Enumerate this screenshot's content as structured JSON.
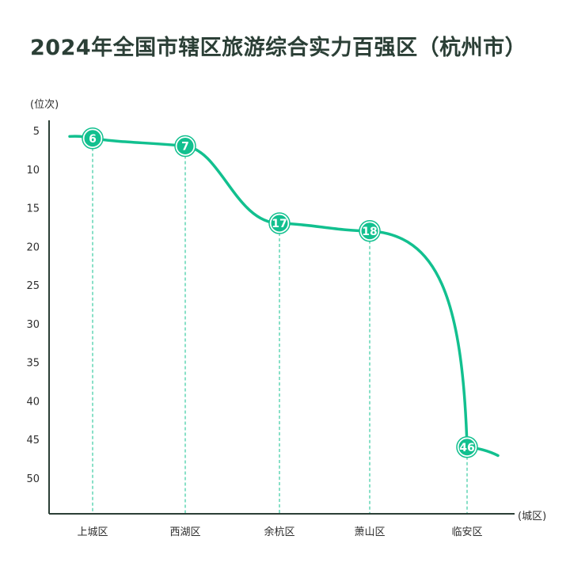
{
  "chart_data": {
    "type": "line",
    "title": "2024年全国市辖区旅游综合实力百强区（杭州市）",
    "ylabel": "(位次)",
    "xlabel": "(城区)",
    "categories": [
      "上城区",
      "西湖区",
      "余杭区",
      "萧山区",
      "临安区"
    ],
    "values": [
      6,
      7,
      17,
      18,
      46
    ],
    "yticks": [
      5,
      10,
      15,
      20,
      25,
      30,
      35,
      40,
      45,
      50
    ],
    "ylim": [
      4,
      55
    ],
    "y_inverted": true,
    "line_color": "#12c08f",
    "axis_color": "#2b3f36"
  }
}
